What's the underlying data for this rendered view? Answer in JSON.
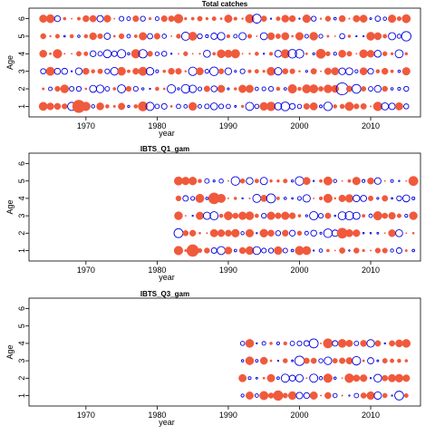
{
  "colors": {
    "positive": "#f05a3c",
    "negative": "#0000e0",
    "axis": "#000000",
    "background": "#ffffff"
  },
  "marker_legend": {
    "filled-circle": "positive residual",
    "open-circle": "negative residual"
  },
  "chart_data": [
    {
      "type": "scatter",
      "title": "Total catches",
      "xlabel": "year",
      "ylabel": "Age",
      "xlim": [
        1962,
        2017
      ],
      "ylim": [
        0.4,
        6.6
      ],
      "xticks": [
        1970,
        1980,
        1990,
        2000,
        2010
      ],
      "yticks": [
        1,
        2,
        3,
        4,
        5,
        6
      ],
      "grid": false,
      "year_range": [
        1964,
        2015
      ],
      "ages": [
        1,
        2,
        3,
        4,
        5,
        6
      ],
      "highlights": [
        {
          "year": 1969,
          "age": 1,
          "value": 1.8
        },
        {
          "year": 1978,
          "age": 1,
          "value": 1.0
        },
        {
          "year": 1964,
          "age": 1,
          "value": 0.8
        },
        {
          "year": 2006,
          "age": 2,
          "value": -1.6
        },
        {
          "year": 2015,
          "age": 5,
          "value": -1.0
        },
        {
          "year": 2015,
          "age": 6,
          "value": 0.8
        },
        {
          "year": 2003,
          "age": 4,
          "value": 1.0
        }
      ]
    },
    {
      "type": "scatter",
      "title": "IBTS_Q1_gam",
      "xlabel": "year",
      "ylabel": "Age",
      "xlim": [
        1962,
        2017
      ],
      "ylim": [
        0.4,
        6.6
      ],
      "xticks": [
        1970,
        1980,
        1990,
        2000,
        2010
      ],
      "yticks": [
        1,
        2,
        3,
        4,
        5,
        6
      ],
      "grid": false,
      "year_range": [
        1983,
        2016
      ],
      "ages": [
        1,
        2,
        3,
        4,
        5
      ],
      "highlights": [
        {
          "year": 1985,
          "age": 1,
          "value": 1.6
        },
        {
          "year": 1988,
          "age": 4,
          "value": 1.4
        },
        {
          "year": 1983,
          "age": 2,
          "value": -0.9
        },
        {
          "year": 2006,
          "age": 2,
          "value": 1.2
        },
        {
          "year": 2016,
          "age": 5,
          "value": 1.0
        }
      ]
    },
    {
      "type": "scatter",
      "title": "IBTS_Q3_gam",
      "xlabel": "year",
      "ylabel": "Age",
      "xlim": [
        1962,
        2017
      ],
      "ylim": [
        0.4,
        6.6
      ],
      "xticks": [
        1970,
        1980,
        1990,
        2000,
        2010
      ],
      "yticks": [
        1,
        2,
        3,
        4,
        5,
        6
      ],
      "grid": false,
      "year_range": [
        1992,
        2015
      ],
      "ages": [
        1,
        2,
        3,
        4
      ],
      "highlights": [
        {
          "year": 2000,
          "age": 3,
          "value": -1.0
        },
        {
          "year": 2002,
          "age": 4,
          "value": -0.9
        },
        {
          "year": 1997,
          "age": 1,
          "value": 1.1
        },
        {
          "year": 2004,
          "age": 4,
          "value": 1.0
        }
      ]
    }
  ]
}
